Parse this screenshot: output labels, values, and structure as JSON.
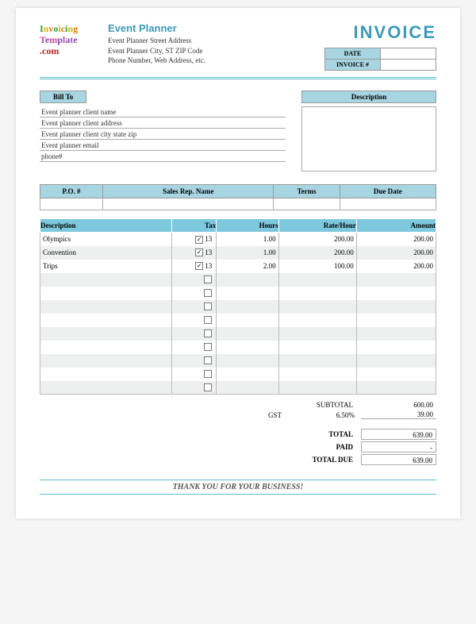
{
  "colors": {
    "accent": "#3c9bb8",
    "header_bg": "#a8d5e2",
    "items_header_bg": "#7ec8dd",
    "rule": "#5dbcd2",
    "alt_row": "#eef0f0",
    "border": "#999"
  },
  "logo": {
    "line1": "Invoicing",
    "line2": "Template",
    "line3": ".com",
    "l1c1": "#2e9b4a",
    "l1c2": "#d6b400",
    "l1c3": "#e07a00",
    "l2c1": "#d04a8a",
    "l2c2": "#7a47c2",
    "l3c": "#c02020"
  },
  "company": {
    "title": "Event Planner",
    "line1": "Event Planner Street Address",
    "line2": "Event Planner City, ST  ZIP Code",
    "line3": "Phone Number, Web Address, etc."
  },
  "invoice_title": "INVOICE",
  "date_box": {
    "date_label": "DATE",
    "date_val": "",
    "num_label": "INVOICE #",
    "num_val": ""
  },
  "billto": {
    "label": "Bill To",
    "name": "Event planner client name",
    "address": "Event planner client address",
    "csz": "Event planner client city state zip",
    "email": "Event planner email",
    "phone": "phone#"
  },
  "desc_box_label": "Description",
  "ref_headers": [
    "P.O. #",
    "Sales Rep. Name",
    "Terms",
    "Due Date"
  ],
  "items_headers": [
    "Description",
    "Tax",
    "Hours",
    "Rate/Hour",
    "Amount"
  ],
  "items": [
    {
      "desc": "Olympics",
      "taxed": true,
      "tax": "13",
      "hours": "1.00",
      "rate": "200.00",
      "amount": "200.00"
    },
    {
      "desc": "Convention",
      "taxed": true,
      "tax": "13",
      "hours": "1.00",
      "rate": "200.00",
      "amount": "200.00"
    },
    {
      "desc": "Trips",
      "taxed": true,
      "tax": "13",
      "hours": "2.00",
      "rate": "100.00",
      "amount": "200.00"
    }
  ],
  "empty_rows": 9,
  "totals": {
    "subtotal_label": "SUBTOTAL",
    "subtotal": "600.00",
    "gst_label": "GST",
    "gst_pct": "6.50%",
    "gst_val": "39.00",
    "total_label": "TOTAL",
    "total": "639.00",
    "paid_label": "PAID",
    "paid": "-",
    "due_label": "TOTAL DUE",
    "due": "639.00"
  },
  "thanks": "THANK YOU FOR YOUR BUSINESS!"
}
